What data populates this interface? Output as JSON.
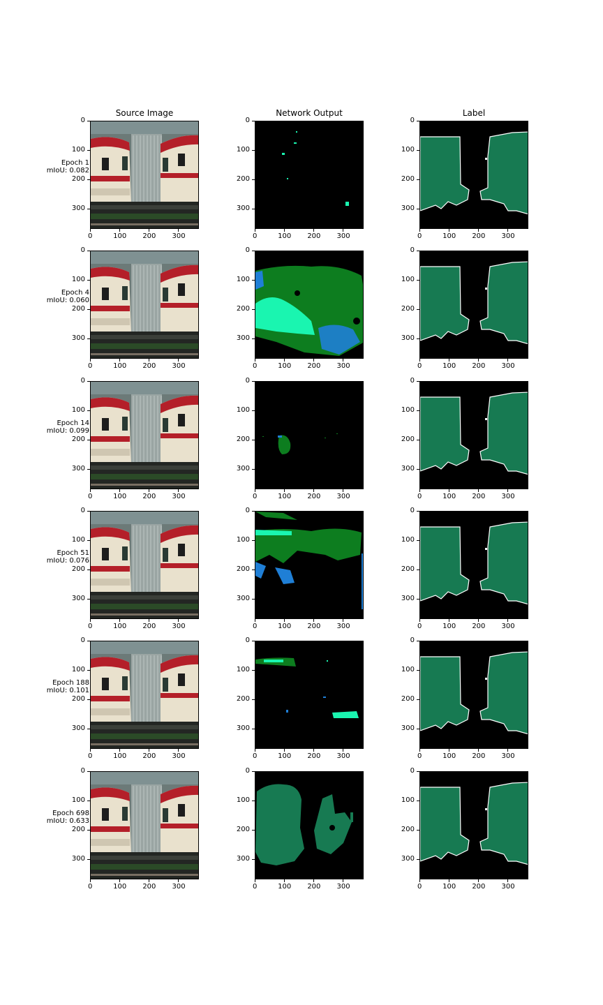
{
  "columns": {
    "source": "Source Image",
    "output": "Network Output",
    "label": "Label"
  },
  "rows": [
    {
      "epoch": "Epoch 1",
      "miou": "mIoU: 0.082"
    },
    {
      "epoch": "Epoch 4",
      "miou": "mIoU: 0.060"
    },
    {
      "epoch": "Epoch 14",
      "miou": "mIoU: 0.099"
    },
    {
      "epoch": "Epoch 51",
      "miou": "mIoU: 0.076"
    },
    {
      "epoch": "Epoch 188",
      "miou": "mIoU: 0.101"
    },
    {
      "epoch": "Epoch 698",
      "miou": "mIoU: 0.633"
    }
  ],
  "axis": {
    "x_ticks": [
      "0",
      "100",
      "200",
      "300"
    ],
    "y_ticks": [
      "0",
      "100",
      "200",
      "300"
    ]
  },
  "colors": {
    "label_fg": "#177a52",
    "output_green": "#0d7d1f",
    "output_teal": "#177a52",
    "output_mint": "#1af5b0",
    "output_blue": "#1f7fd6",
    "background": "#000000"
  }
}
